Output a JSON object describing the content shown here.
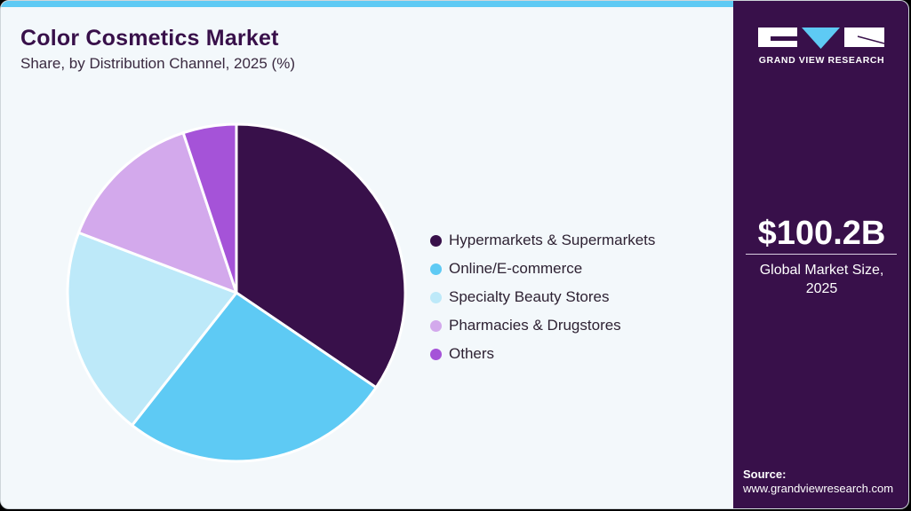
{
  "header": {
    "title": "Color Cosmetics Market",
    "subtitle": "Share, by Distribution Channel, 2025 (%)"
  },
  "chart_data": {
    "type": "pie",
    "title": "Color Cosmetics Market",
    "subtitle": "Share, by Distribution Channel, 2025 (%)",
    "categories": [
      "Hypermarkets & Supermarkets",
      "Online/E-commerce",
      "Specialty Beauty Stores",
      "Pharmacies & Drugstores",
      "Others"
    ],
    "values": [
      34.5,
      26.1,
      20.2,
      14.1,
      5.1
    ],
    "colors": [
      "#38104a",
      "#5ecaf4",
      "#bde9f9",
      "#d3a9ec",
      "#a553d8"
    ],
    "start_angle_deg": 0,
    "direction": "clockwise",
    "legend_position": "right"
  },
  "legend": {
    "items": [
      {
        "label": "Hypermarkets & Supermarkets",
        "color": "#38104a"
      },
      {
        "label": "Online/E-commerce",
        "color": "#5ecaf4"
      },
      {
        "label": "Specialty Beauty Stores",
        "color": "#bde9f9"
      },
      {
        "label": "Pharmacies & Drugstores",
        "color": "#d3a9ec"
      },
      {
        "label": "Others",
        "color": "#a553d8"
      }
    ]
  },
  "sidebar": {
    "brand": "GRAND VIEW RESEARCH",
    "market_value": "$100.2B",
    "market_label_line1": "Global Market Size,",
    "market_label_line2": "2025",
    "source_label": "Source:",
    "source_url": "www.grandviewresearch.com"
  },
  "colors": {
    "sidebar_bg": "#38104a",
    "accent": "#5ecaf4",
    "background": "#f3f8fb"
  }
}
